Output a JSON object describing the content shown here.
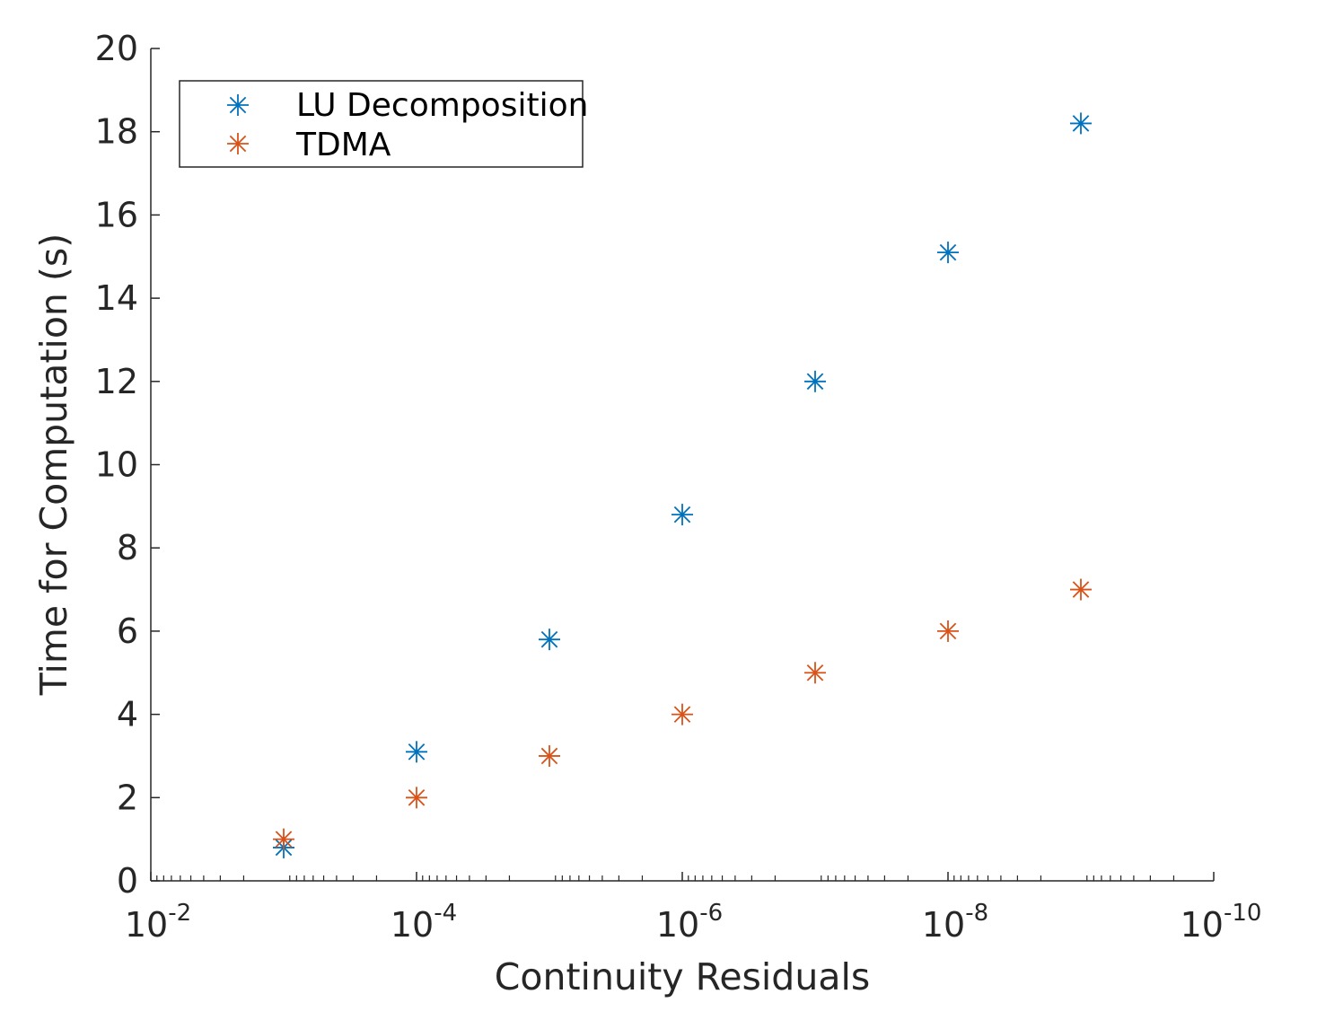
{
  "chart_data": {
    "type": "scatter",
    "title": "",
    "xlabel": "Continuity Residuals",
    "ylabel": "Time for Computation (s)",
    "x_scale": "log",
    "x_direction": "reversed",
    "xlim": [
      0.01,
      1e-10
    ],
    "ylim": [
      0,
      20
    ],
    "x_ticks": [
      {
        "value": 0.01,
        "base": "10",
        "exp": "-2"
      },
      {
        "value": 0.0001,
        "base": "10",
        "exp": "-4"
      },
      {
        "value": 1e-06,
        "base": "10",
        "exp": "-6"
      },
      {
        "value": 1e-08,
        "base": "10",
        "exp": "-8"
      },
      {
        "value": 1e-10,
        "base": "10",
        "exp": "-10"
      }
    ],
    "y_ticks": [
      0,
      2,
      4,
      6,
      8,
      10,
      12,
      14,
      16,
      18,
      20
    ],
    "grid": false,
    "legend_position": "top-left",
    "marker": "asterisk",
    "series": [
      {
        "name": "LU Decomposition",
        "color": "#0072BD",
        "points": [
          {
            "x": 0.001,
            "y": 0.8
          },
          {
            "x": 0.0001,
            "y": 3.1
          },
          {
            "x": 1e-05,
            "y": 5.8
          },
          {
            "x": 1e-06,
            "y": 8.8
          },
          {
            "x": 1e-07,
            "y": 12.0
          },
          {
            "x": 1e-08,
            "y": 15.1
          },
          {
            "x": 1e-09,
            "y": 18.2
          }
        ]
      },
      {
        "name": "TDMA",
        "color": "#D95319",
        "points": [
          {
            "x": 0.001,
            "y": 1.0
          },
          {
            "x": 0.0001,
            "y": 2.0
          },
          {
            "x": 1e-05,
            "y": 3.0
          },
          {
            "x": 1e-06,
            "y": 4.0
          },
          {
            "x": 1e-07,
            "y": 5.0
          },
          {
            "x": 1e-08,
            "y": 6.0
          },
          {
            "x": 1e-09,
            "y": 7.0
          }
        ]
      }
    ]
  }
}
